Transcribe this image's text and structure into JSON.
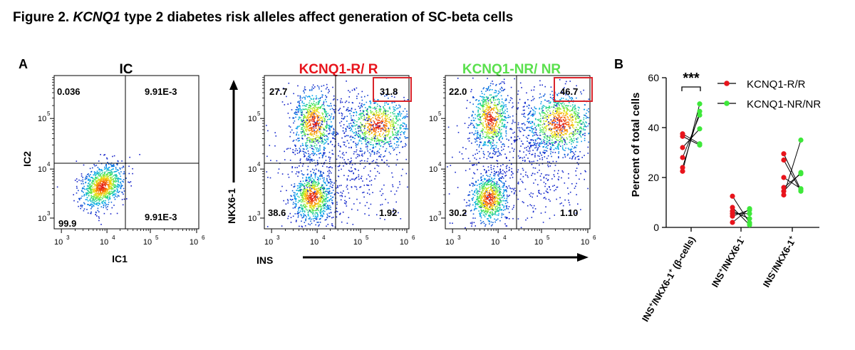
{
  "figure": {
    "title_prefix": "Figure 2. ",
    "title_gene": "KCNQ1",
    "title_rest": " type 2 diabetes risk alleles affect generation of SC-beta cells"
  },
  "panel_a": {
    "label": "A",
    "plots": [
      {
        "title": "IC",
        "title_color": "#000000",
        "xlabel": "IC1",
        "ylabel": "IC2",
        "quadrants": {
          "top_left": "0.036",
          "top_right": "9.91E-3",
          "bottom_left": "99.9",
          "bottom_right": "9.91E-3"
        },
        "highlight_top_right": false
      },
      {
        "title": "KCNQ1-R/ R",
        "title_color": "#e8141c",
        "quadrants": {
          "top_left": "27.7",
          "top_right": "31.8",
          "bottom_left": "38.6",
          "bottom_right": "1.92"
        },
        "highlight_top_right": true
      },
      {
        "title": "KCNQ1-NR/ NR",
        "title_color": "#5ae04d",
        "quadrants": {
          "top_left": "22.0",
          "top_right": "46.7",
          "bottom_left": "30.2",
          "bottom_right": "1.10"
        },
        "highlight_top_right": true
      }
    ],
    "shared_xlabel": "INS",
    "shared_ylabel": "NKX6-1",
    "x_ticks": [
      "10",
      "10",
      "10",
      "10"
    ],
    "x_tick_exps": [
      "3",
      "4",
      "5",
      "6"
    ],
    "y_ticks": [
      "10",
      "10",
      "10"
    ],
    "y_tick_exps": [
      "3",
      "4",
      "5"
    ],
    "highlight_color": "#d9232a"
  },
  "panel_b": {
    "label": "B",
    "significance": "***",
    "legend": [
      {
        "label": "KCNQ1-R/R",
        "color": "#e8141c"
      },
      {
        "label": "KCNQ1-NR/NR",
        "color": "#3ee83a"
      }
    ]
  },
  "chart_data": {
    "type": "scatter",
    "title": "",
    "ylabel": "Percent of total cells",
    "ylim": [
      0,
      60
    ],
    "yticks": [
      0,
      20,
      40,
      60
    ],
    "categories": [
      {
        "pre": "INS",
        "sup1": "+",
        "mid": "/NKX6-1",
        "sup2": "+",
        "post": " (β-cells)"
      },
      {
        "pre": "INS",
        "sup1": "+",
        "mid": "/NKX6-1",
        "sup2": "-",
        "post": ""
      },
      {
        "pre": "INS",
        "sup1": "-",
        "mid": "/NKX6-1",
        "sup2": "+",
        "post": ""
      }
    ],
    "series": [
      {
        "name": "KCNQ1-R/R",
        "color": "#e8141c",
        "values": [
          [
            22.5,
            24,
            28,
            32,
            36.5,
            37.5
          ],
          [
            2,
            4.5,
            5.5,
            6.5,
            8,
            12.5
          ],
          [
            13,
            14.5,
            16,
            20,
            27,
            29.5
          ]
        ]
      },
      {
        "name": "KCNQ1-NR/NR",
        "color": "#3ee83a",
        "values": [
          [
            33,
            33.5,
            39.5,
            45,
            46.5,
            49.5
          ],
          [
            1,
            1.8,
            3.5,
            5.5,
            7,
            7.5
          ],
          [
            14.5,
            15,
            15.5,
            21.5,
            22,
            35
          ]
        ]
      }
    ],
    "pairs": [
      [
        0,
        5
      ],
      [
        1,
        4
      ],
      [
        2,
        3
      ],
      [
        3,
        2
      ],
      [
        4,
        0
      ],
      [
        5,
        1
      ]
    ]
  }
}
